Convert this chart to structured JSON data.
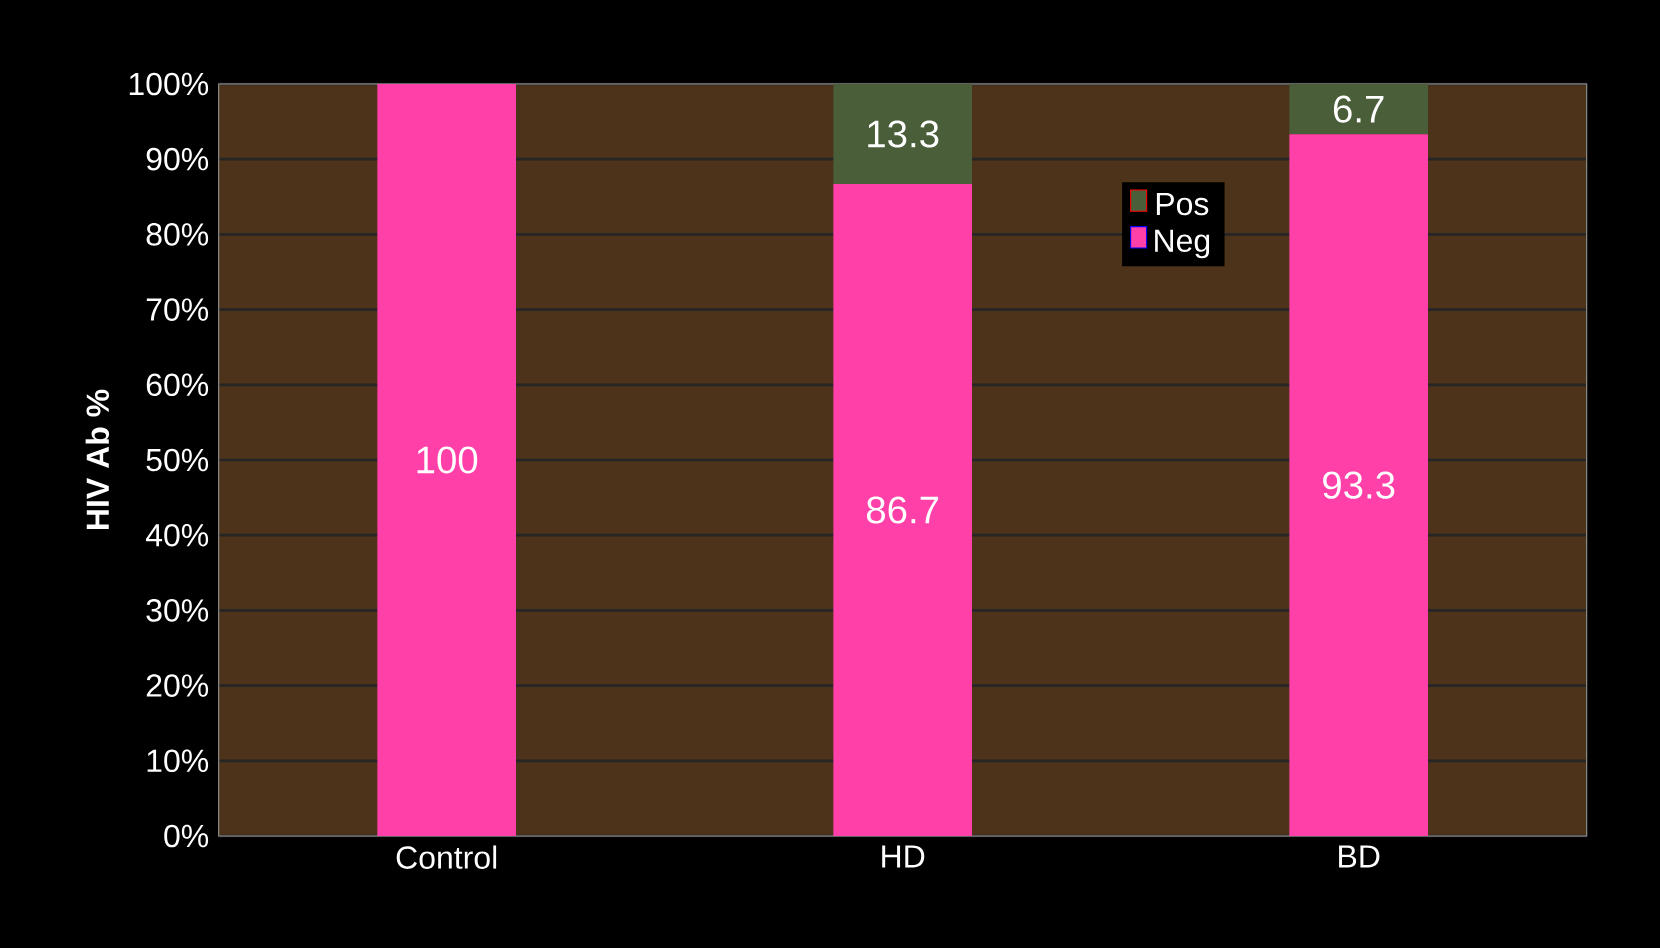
{
  "chart_data": {
    "type": "bar",
    "stacked": true,
    "ylabel": "HIV Ab %",
    "categories": [
      "Control",
      "HD",
      "BD"
    ],
    "series": [
      {
        "name": "Neg",
        "color": "#ff40a8",
        "values": [
          100,
          86.7,
          93.3
        ],
        "value_labels": [
          "100",
          "86.7",
          "93.3"
        ]
      },
      {
        "name": "Pos",
        "color": "#4a5e3a",
        "values": [
          0,
          13.3,
          6.7
        ],
        "value_labels": [
          null,
          "13.3",
          "6.7"
        ]
      }
    ],
    "ylim": [
      0,
      100
    ],
    "yticks": [
      {
        "value": 0,
        "label": "0%"
      },
      {
        "value": 10,
        "label": "10%"
      },
      {
        "value": 20,
        "label": "20%"
      },
      {
        "value": 30,
        "label": "30%"
      },
      {
        "value": 40,
        "label": "40%"
      },
      {
        "value": 50,
        "label": "50%"
      },
      {
        "value": 60,
        "label": "60%"
      },
      {
        "value": 70,
        "label": "70%"
      },
      {
        "value": 80,
        "label": "80%"
      },
      {
        "value": 90,
        "label": "90%"
      },
      {
        "value": 100,
        "label": "100%"
      }
    ],
    "grid": "y",
    "legend": "right"
  }
}
